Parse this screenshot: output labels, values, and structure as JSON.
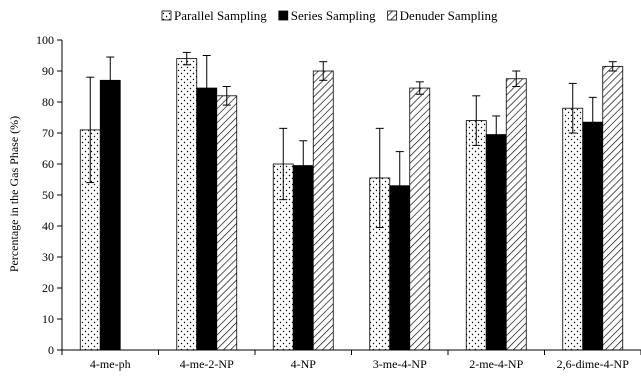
{
  "chart_data": {
    "type": "bar",
    "title": "",
    "xlabel": "",
    "ylabel": "Percentage in the Gas Phase (%)",
    "ylim": [
      0,
      100
    ],
    "yticks": [
      0,
      10,
      20,
      30,
      40,
      50,
      60,
      70,
      80,
      90,
      100
    ],
    "categories": [
      "4-me-ph",
      "4-me-2-NP",
      "4-NP",
      "3-me-4-NP",
      "2-me-4-NP",
      "2,6-dime-4-NP"
    ],
    "legend_position": "top",
    "grid": false,
    "series": [
      {
        "name": "Parallel Sampling",
        "pattern": "dots",
        "color": "#000000",
        "values": [
          71,
          94,
          60,
          55.5,
          74,
          78
        ],
        "error": [
          17,
          2,
          11.5,
          16,
          8,
          8
        ]
      },
      {
        "name": "Series Sampling",
        "pattern": "solid",
        "color": "#000000",
        "values": [
          87,
          84.5,
          59.5,
          53,
          69.5,
          73.5
        ],
        "error": [
          7.5,
          10.5,
          8,
          11,
          6,
          8
        ]
      },
      {
        "name": "Denuder Sampling",
        "pattern": "diagonal-hatch",
        "color": "#000000",
        "values": [
          null,
          82,
          90,
          84.5,
          87.5,
          91.5
        ],
        "error": [
          null,
          3,
          3,
          2,
          2.5,
          1.5
        ]
      }
    ]
  }
}
